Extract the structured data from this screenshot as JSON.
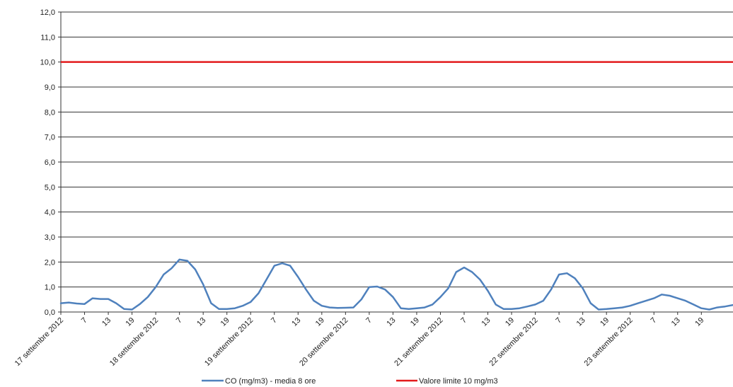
{
  "chart_data": {
    "type": "line",
    "title": "",
    "xlabel": "",
    "ylabel": "",
    "ylim": [
      0,
      12
    ],
    "y_ticks": [
      "0,0",
      "1,0",
      "2,0",
      "3,0",
      "4,0",
      "5,0",
      "6,0",
      "7,0",
      "8,0",
      "9,0",
      "10,0",
      "11,0",
      "12,0"
    ],
    "grid": true,
    "legend_position": "bottom",
    "x_labels": [
      "17 settembre 2012",
      "7",
      "13",
      "19",
      "18 settembre 2012",
      "7",
      "13",
      "19",
      "19 settembre 2012",
      "7",
      "13",
      "19",
      "20 settembre 2012",
      "7",
      "13",
      "19",
      "21 settembre 2012",
      "7",
      "13",
      "19",
      "22 settembre 2012",
      "7",
      "13",
      "19",
      "23 settembre 2012",
      "7",
      "13",
      "19"
    ],
    "x_label_hours": [
      0,
      6,
      12,
      18,
      24,
      30,
      36,
      42,
      48,
      54,
      60,
      66,
      72,
      78,
      84,
      90,
      96,
      102,
      108,
      114,
      120,
      126,
      132,
      138,
      144,
      150,
      156,
      162
    ],
    "series": [
      {
        "name": "CO (mg/m3) - media 8 ore",
        "color": "#4f81bd",
        "values": [
          0.35,
          0.38,
          0.34,
          0.32,
          0.55,
          0.52,
          0.52,
          0.35,
          0.12,
          0.1,
          0.32,
          0.6,
          1.0,
          1.5,
          1.75,
          2.1,
          2.05,
          1.7,
          1.1,
          0.35,
          0.12,
          0.12,
          0.15,
          0.25,
          0.4,
          0.75,
          1.3,
          1.85,
          1.95,
          1.85,
          1.4,
          0.9,
          0.45,
          0.25,
          0.18,
          0.16,
          0.17,
          0.18,
          0.5,
          1.0,
          1.02,
          0.9,
          0.6,
          0.15,
          0.12,
          0.15,
          0.18,
          0.3,
          0.6,
          0.95,
          1.6,
          1.78,
          1.6,
          1.3,
          0.85,
          0.3,
          0.12,
          0.12,
          0.15,
          0.22,
          0.3,
          0.45,
          0.9,
          1.5,
          1.55,
          1.35,
          0.95,
          0.35,
          0.1,
          0.12,
          0.15,
          0.18,
          0.25,
          0.35,
          0.45,
          0.55,
          0.7,
          0.65,
          0.55,
          0.45,
          0.3,
          0.15,
          0.1,
          0.18,
          0.22,
          0.28
        ]
      },
      {
        "name": "Valore limite 10 mg/m3",
        "color": "#e31a1c",
        "values": [
          10,
          10
        ]
      }
    ]
  }
}
